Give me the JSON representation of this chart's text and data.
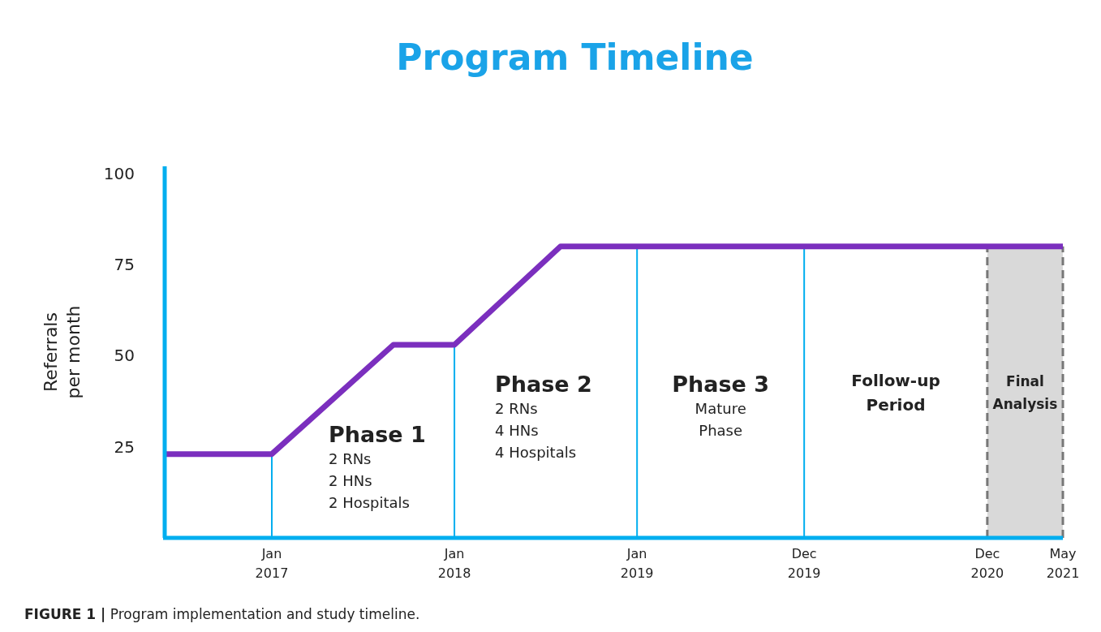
{
  "chart_data": {
    "type": "line",
    "title": "Program Timeline",
    "ylabel": "Referrals\nper month",
    "x": [
      "2016-06",
      "2017-01",
      "2017-09",
      "2018-01",
      "2018-08",
      "2021-05"
    ],
    "series": [
      {
        "color": "#7b2fbe",
        "values": [
          23,
          23,
          53,
          53,
          80,
          80
        ]
      }
    ],
    "xlim": [
      "2016-06",
      "2021-05"
    ],
    "xticks": [
      {
        "value": "2017-01",
        "label": "Jan\n2017"
      },
      {
        "value": "2018-01",
        "label": "Jan\n2018"
      },
      {
        "value": "2019-01",
        "label": "Jan\n2019"
      },
      {
        "value": "2019-12",
        "label": "Dec\n2019"
      },
      {
        "value": "2020-12",
        "label": "Dec\n2020"
      },
      {
        "value": "2021-05",
        "label": "May\n2021"
      }
    ],
    "ylim": [
      0,
      102
    ],
    "yticks": [
      25,
      50,
      75,
      100
    ],
    "grid": false,
    "marker": "none",
    "line_style": "solid",
    "ref_lines": [
      {
        "axis": "x",
        "value": "2017-01",
        "color": "#00aeef"
      },
      {
        "axis": "x",
        "value": "2018-01",
        "color": "#00aeef"
      },
      {
        "axis": "x",
        "value": "2019-01",
        "color": "#00aeef"
      },
      {
        "axis": "x",
        "value": "2019-12",
        "color": "#00aeef"
      },
      {
        "axis": "x",
        "value": "2020-12",
        "color": "#777777",
        "line_style": "dashed"
      },
      {
        "axis": "x",
        "value": "2021-05",
        "color": "#777777",
        "line_style": "dashed"
      }
    ],
    "bands": [
      {
        "axis": "x",
        "from": "2020-12",
        "to": "2021-05",
        "label": "Final\nAnalysis",
        "color": "#d9d9d9"
      }
    ],
    "annotations": [
      "Phase 1\n2 RNs\n2 HNs\n2 Hospitals",
      "Phase 2\n2 RNs\n4 HNs\n4 Hospitals",
      "Phase 3\nMature\nPhase",
      "Follow-up\nPeriod",
      "FIGURE 1 | Program implementation and study timeline."
    ]
  }
}
